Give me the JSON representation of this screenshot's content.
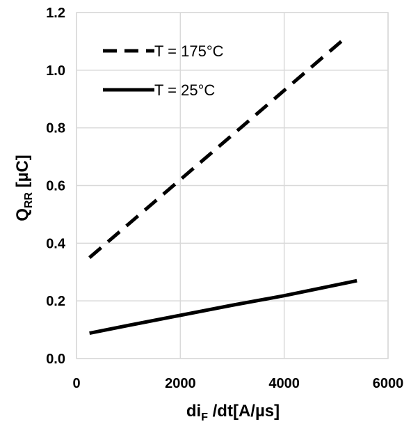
{
  "chart_data": {
    "type": "line",
    "xlabel": {
      "main": "di",
      "sub": "F",
      "rest": " /dt[A/µs]"
    },
    "ylabel": {
      "main": "Q",
      "sub": "RR",
      "rest": " [µC]"
    },
    "xlim": [
      0,
      6000
    ],
    "ylim": [
      0,
      1.2
    ],
    "x_ticks": [
      "0",
      "2000",
      "4000",
      "6000"
    ],
    "x_tick_values": [
      0,
      2000,
      4000,
      6000
    ],
    "y_ticks": [
      "0.0",
      "0.2",
      "0.4",
      "0.6",
      "0.8",
      "1.0",
      "1.2"
    ],
    "y_tick_values": [
      0,
      0.2,
      0.4,
      0.6,
      0.8,
      1.0,
      1.2
    ],
    "grid": true,
    "legend_position": "top-left",
    "series": [
      {
        "name": "T = 175°C",
        "style": "dashed",
        "color": "#000000",
        "x": [
          250,
          5100
        ],
        "y": [
          0.35,
          1.1
        ]
      },
      {
        "name": "T = 25°C",
        "style": "solid",
        "color": "#000000",
        "x": [
          250,
          1000,
          2000,
          3000,
          4000,
          5400
        ],
        "y": [
          0.088,
          0.115,
          0.15,
          0.185,
          0.218,
          0.27
        ]
      }
    ]
  }
}
